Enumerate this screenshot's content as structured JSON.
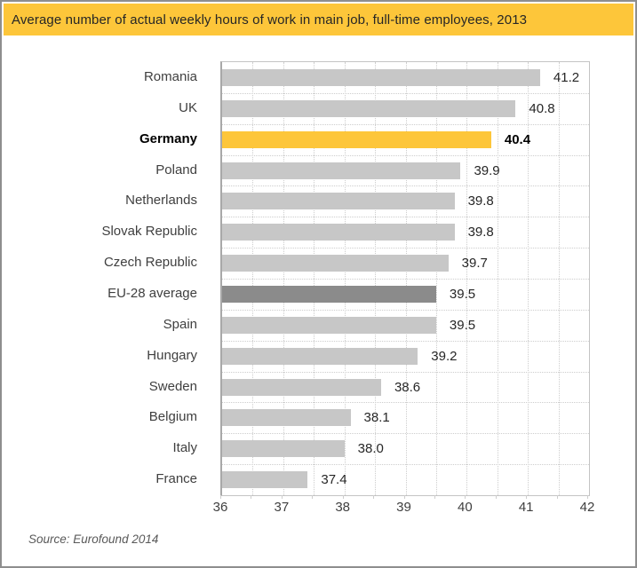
{
  "title": "Average number of actual weekly hours of work in main job, full-time employees, 2013",
  "source": "Source: Eurofound 2014",
  "colors": {
    "frame_border": "#8E8E8E",
    "title_bg": "#FDC63A",
    "title_text": "#262626",
    "bar_default": "#C7C7C7",
    "bar_highlight": "#FDC63A",
    "bar_emphasis": "#8B8B8B",
    "grid": "#CDCDCD",
    "plot_border": "#C4C4C4",
    "axis": "#A8A8A8",
    "label_text": "#3F3F3F",
    "value_text": "#262626",
    "source_text": "#595959"
  },
  "chart_data": {
    "type": "bar",
    "orientation": "horizontal",
    "title": "Average number of actual weekly hours of work in main job, full-time employees, 2013",
    "categories": [
      "Romania",
      "UK",
      "Germany",
      "Poland",
      "Netherlands",
      "Slovak Republic",
      "Czech Republic",
      "EU-28 average",
      "Spain",
      "Hungary",
      "Sweden",
      "Belgium",
      "Italy",
      "France"
    ],
    "values": [
      41.2,
      40.8,
      40.4,
      39.9,
      39.8,
      39.8,
      39.7,
      39.5,
      39.5,
      39.2,
      38.6,
      38.1,
      38.0,
      37.4
    ],
    "value_labels": [
      "41.2",
      "40.8",
      "40.4",
      "39.9",
      "39.8",
      "39.8",
      "39.7",
      "39.5",
      "39.5",
      "39.2",
      "38.6",
      "38.1",
      "38.0",
      "37.4"
    ],
    "highlight_category": "Germany",
    "emphasis_category": "EU-28 average",
    "xlim": [
      36,
      42
    ],
    "xticks": [
      36,
      37,
      38,
      39,
      40,
      41,
      42
    ],
    "grid_step": 0.5,
    "grid_style": "dotted",
    "legend": "none",
    "source": "Source: Eurofound 2014"
  }
}
